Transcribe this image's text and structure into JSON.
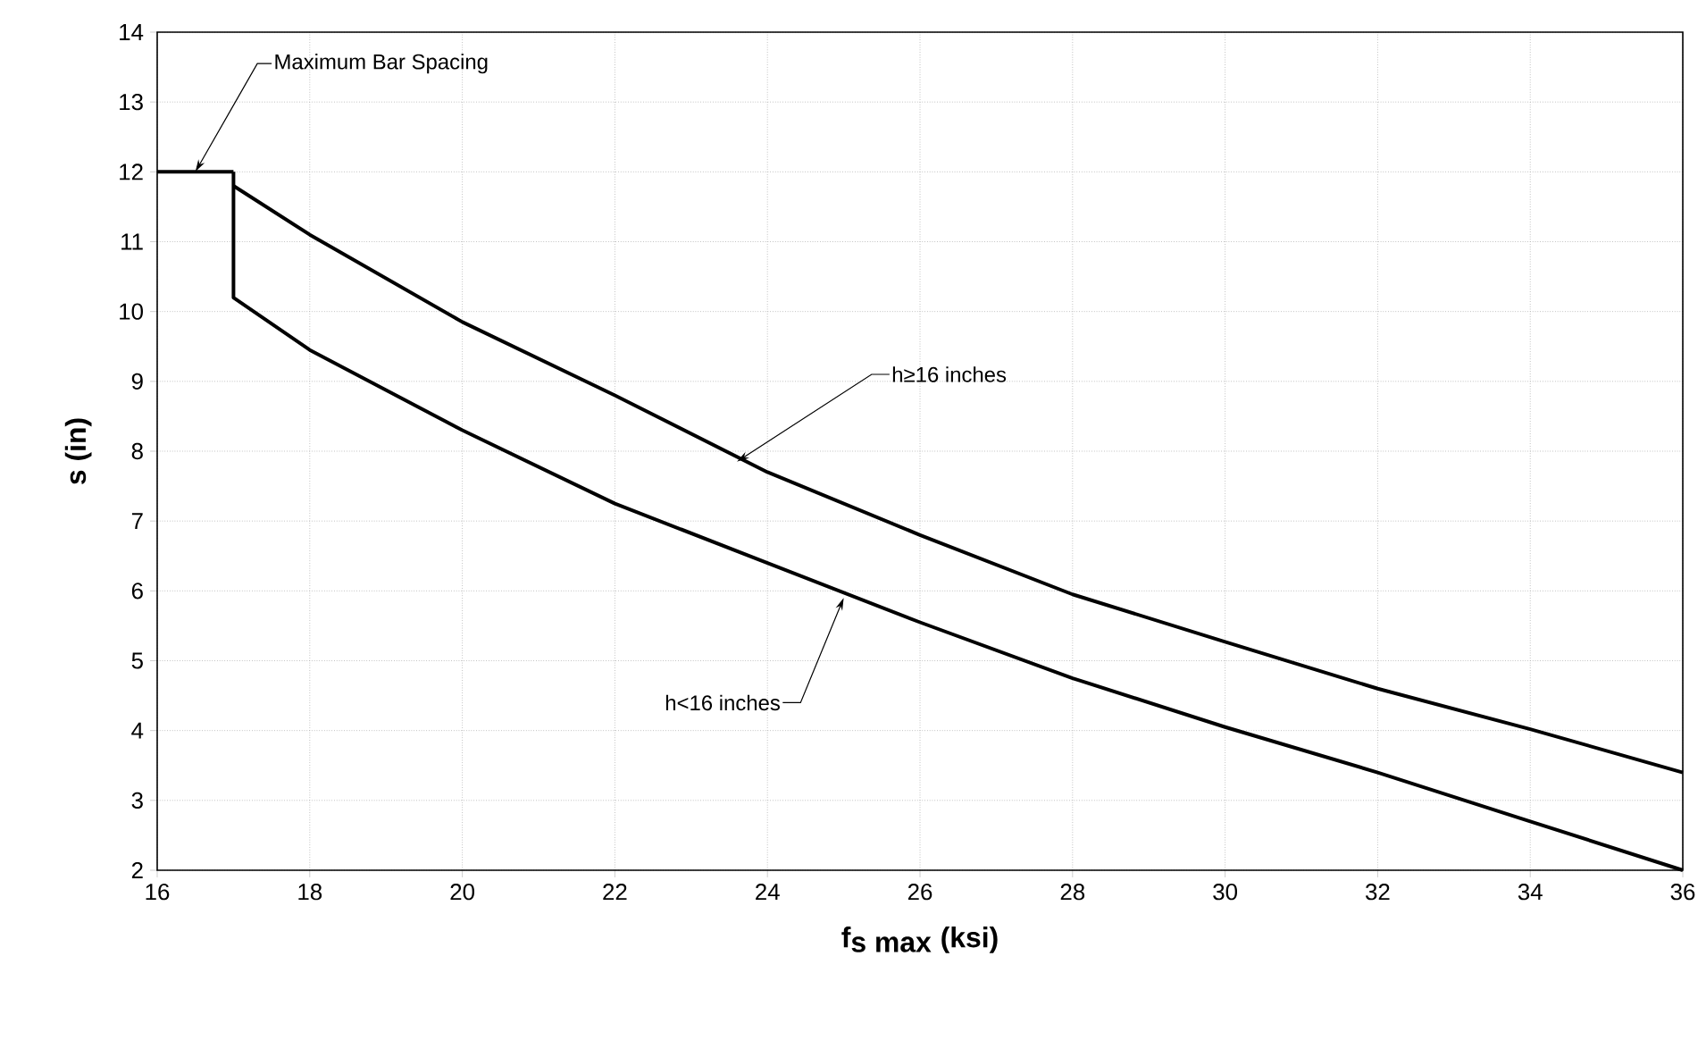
{
  "chart_data": {
    "type": "line",
    "xlabel": "\\textbf{f}_{\\textbf{s max}}\\textbf{ (ksi)}",
    "ylabel": "s (in)",
    "xlim": [
      16,
      36
    ],
    "xticks": [
      16,
      18,
      20,
      22,
      24,
      26,
      28,
      30,
      32,
      34,
      36
    ],
    "ylim": [
      2,
      14
    ],
    "yticks": [
      2,
      3,
      4,
      5,
      6,
      7,
      8,
      9,
      10,
      11,
      12,
      13,
      14
    ],
    "grid": true,
    "line_style": "solid",
    "series": [
      {
        "color": "#000000",
        "x": [
          16,
          17
        ],
        "values": [
          12,
          12
        ]
      },
      {
        "color": "#000000",
        "x": [
          17,
          18,
          20,
          22,
          24,
          26,
          28,
          30,
          32,
          34,
          36
        ],
        "values": [
          11.8,
          11.1,
          9.85,
          8.8,
          7.7,
          6.8,
          5.95,
          5.27,
          4.6,
          4.02,
          3.4
        ]
      },
      {
        "color": "#000000",
        "x": [
          17,
          17,
          18,
          20,
          22,
          24,
          26,
          28,
          30,
          32,
          34,
          36
        ],
        "values": [
          12,
          10.2,
          9.45,
          8.3,
          7.25,
          6.4,
          5.55,
          4.75,
          4.05,
          3.4,
          2.7,
          2.0
        ]
      }
    ],
    "annotations": [
      {
        "text": "Maximum Bar Spacing",
        "x": 16.5,
        "y": 12
      },
      {
        "text": "h≥16 inches",
        "x": 23.6,
        "y": 7.85
      },
      {
        "text": "h<16 inches",
        "x": 25.0,
        "y": 5.9
      }
    ]
  }
}
